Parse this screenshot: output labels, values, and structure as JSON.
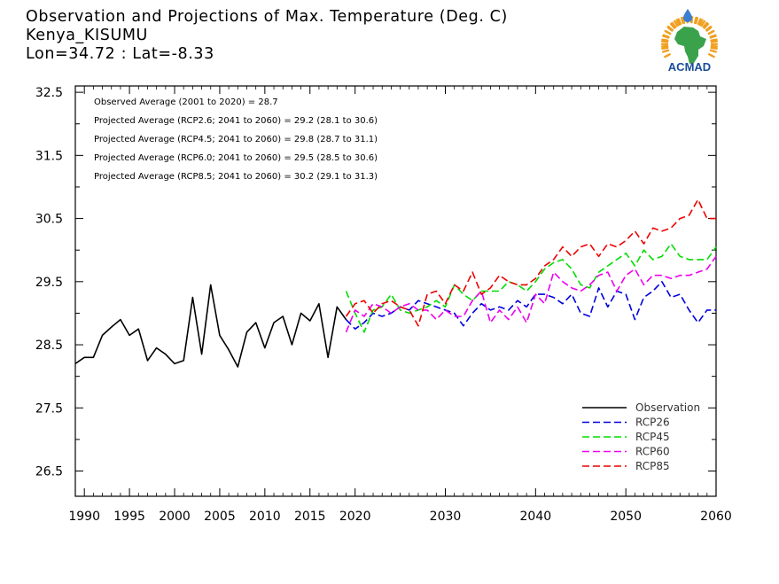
{
  "header": {
    "title": "Observation and Projections of Max. Temperature (Deg. C)",
    "location": "Kenya_KISUMU",
    "coords": "Lon=34.72 : Lat=-8.33"
  },
  "logo": {
    "text": "ACMAD",
    "colors": {
      "africa": "#3aa24a",
      "rays": "#f0a020",
      "text": "#1b4d9b",
      "drop": "#3b7fd1"
    }
  },
  "annotations": [
    "Observed Average (2001 to 2020) = 28.7",
    "Projected Average (RCP2.6; 2041 to 2060) = 29.2 (28.1 to 30.6)",
    "Projected Average (RCP4.5; 2041 to 2060) = 29.8 (28.7 to 31.1)",
    "Projected Average (RCP6.0; 2041 to 2060) = 29.5 (28.5 to 30.6)",
    "Projected Average (RCP8.5; 2041 to 2060) = 30.2 (29.1 to 31.3)"
  ],
  "chart_data": {
    "type": "line",
    "xlim": [
      1989,
      2060
    ],
    "ylim": [
      26.1,
      32.6
    ],
    "yticks": [
      26.5,
      27.5,
      28.5,
      29.5,
      30.5,
      31.5,
      32.5
    ],
    "ytick_labels": [
      "26.5",
      "27.5",
      "28.5",
      "29.5",
      "30.5",
      "31.5",
      "32.5"
    ],
    "xticks": [
      1990,
      1995,
      2000,
      2005,
      2010,
      2015,
      2020,
      2030,
      2040,
      2050,
      2060
    ],
    "xtick_labels": [
      "1990",
      "1995",
      "2000",
      "2005",
      "2010",
      "2015",
      "2020",
      "2030",
      "2040",
      "2050",
      "2060"
    ],
    "legend_position": "bottom-right",
    "series": [
      {
        "name": "Observation",
        "color": "#000000",
        "dash": false,
        "x": [
          1989,
          1990,
          1991,
          1992,
          1993,
          1994,
          1995,
          1996,
          1997,
          1998,
          1999,
          2000,
          2001,
          2002,
          2003,
          2004,
          2005,
          2006,
          2007,
          2008,
          2009,
          2010,
          2011,
          2012,
          2013,
          2014,
          2015,
          2016,
          2017,
          2018,
          2019
        ],
        "y": [
          28.2,
          28.3,
          28.3,
          28.65,
          28.78,
          28.9,
          28.65,
          28.75,
          28.25,
          28.45,
          28.35,
          28.2,
          28.25,
          29.25,
          28.35,
          29.45,
          28.65,
          28.42,
          28.15,
          28.7,
          28.85,
          28.45,
          28.85,
          28.95,
          28.5,
          29.0,
          28.88,
          29.15,
          28.3,
          29.1,
          28.9
        ]
      },
      {
        "name": "RCP26",
        "color": "#0000dd",
        "dash": true,
        "x": [
          2019,
          2020,
          2021,
          2022,
          2023,
          2024,
          2025,
          2026,
          2027,
          2028,
          2029,
          2030,
          2031,
          2032,
          2033,
          2034,
          2035,
          2036,
          2037,
          2038,
          2039,
          2040,
          2041,
          2042,
          2043,
          2044,
          2045,
          2046,
          2047,
          2048,
          2049,
          2050,
          2051,
          2052,
          2053,
          2054,
          2055,
          2056,
          2057,
          2058,
          2059,
          2060
        ],
        "y": [
          28.9,
          28.75,
          28.85,
          29.0,
          28.95,
          29.0,
          29.1,
          29.05,
          29.2,
          29.15,
          29.1,
          29.05,
          29.0,
          28.8,
          29.0,
          29.15,
          29.05,
          29.1,
          29.05,
          29.2,
          29.1,
          29.3,
          29.3,
          29.25,
          29.15,
          29.3,
          29.0,
          28.95,
          29.4,
          29.1,
          29.35,
          29.3,
          28.9,
          29.25,
          29.35,
          29.5,
          29.25,
          29.3,
          29.05,
          28.85,
          29.05,
          29.05
        ]
      },
      {
        "name": "RCP45",
        "color": "#00dd00",
        "dash": true,
        "x": [
          2019,
          2020,
          2021,
          2022,
          2023,
          2024,
          2025,
          2026,
          2027,
          2028,
          2029,
          2030,
          2031,
          2032,
          2033,
          2034,
          2035,
          2036,
          2037,
          2038,
          2039,
          2040,
          2041,
          2042,
          2043,
          2044,
          2045,
          2046,
          2047,
          2048,
          2049,
          2050,
          2051,
          2052,
          2053,
          2054,
          2055,
          2056,
          2057,
          2058,
          2059,
          2060
        ],
        "y": [
          29.35,
          29.0,
          28.7,
          29.05,
          29.1,
          29.3,
          29.05,
          29.0,
          29.05,
          29.1,
          29.2,
          29.1,
          29.45,
          29.3,
          29.2,
          29.35,
          29.35,
          29.35,
          29.5,
          29.45,
          29.35,
          29.5,
          29.7,
          29.8,
          29.85,
          29.7,
          29.45,
          29.4,
          29.65,
          29.75,
          29.85,
          29.95,
          29.75,
          30.0,
          29.85,
          29.9,
          30.1,
          29.9,
          29.85,
          29.85,
          29.85,
          30.05
        ]
      },
      {
        "name": "RCP60",
        "color": "#ee00ee",
        "dash": true,
        "x": [
          2019,
          2020,
          2021,
          2022,
          2023,
          2024,
          2025,
          2026,
          2027,
          2028,
          2029,
          2030,
          2031,
          2032,
          2033,
          2034,
          2035,
          2036,
          2037,
          2038,
          2039,
          2040,
          2041,
          2042,
          2043,
          2044,
          2045,
          2046,
          2047,
          2048,
          2049,
          2050,
          2051,
          2052,
          2053,
          2054,
          2055,
          2056,
          2057,
          2058,
          2059,
          2060
        ],
        "y": [
          28.7,
          29.05,
          28.95,
          29.15,
          29.1,
          29.0,
          29.1,
          29.15,
          29.05,
          29.05,
          28.9,
          29.05,
          28.95,
          28.95,
          29.2,
          29.35,
          28.85,
          29.05,
          28.9,
          29.1,
          28.85,
          29.3,
          29.15,
          29.65,
          29.5,
          29.4,
          29.35,
          29.45,
          29.6,
          29.65,
          29.35,
          29.6,
          29.7,
          29.45,
          29.6,
          29.6,
          29.55,
          29.6,
          29.6,
          29.65,
          29.7,
          29.9
        ]
      },
      {
        "name": "RCP85",
        "color": "#ee0000",
        "dash": true,
        "x": [
          2019,
          2020,
          2021,
          2022,
          2023,
          2024,
          2025,
          2026,
          2027,
          2028,
          2029,
          2030,
          2031,
          2032,
          2033,
          2034,
          2035,
          2036,
          2037,
          2038,
          2039,
          2040,
          2041,
          2042,
          2043,
          2044,
          2045,
          2046,
          2047,
          2048,
          2049,
          2050,
          2051,
          2052,
          2053,
          2054,
          2055,
          2056,
          2057,
          2058,
          2059,
          2060
        ],
        "y": [
          28.95,
          29.15,
          29.2,
          29.0,
          29.15,
          29.2,
          29.1,
          29.05,
          28.8,
          29.3,
          29.35,
          29.15,
          29.45,
          29.35,
          29.65,
          29.3,
          29.4,
          29.6,
          29.5,
          29.45,
          29.45,
          29.55,
          29.75,
          29.85,
          30.05,
          29.9,
          30.05,
          30.1,
          29.9,
          30.1,
          30.05,
          30.15,
          30.3,
          30.1,
          30.35,
          30.3,
          30.35,
          30.5,
          30.55,
          30.8,
          30.5,
          30.5
        ]
      }
    ]
  }
}
